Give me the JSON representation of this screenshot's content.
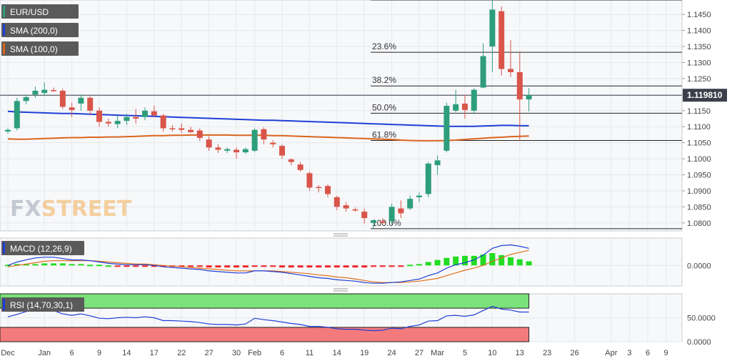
{
  "chart_data": {
    "type": "candlestick",
    "main": {
      "symbol_label": "EUR/USD",
      "sma200_label": "SMA (200,0)",
      "sma100_label": "SMA (100,0)",
      "last_price_label": "1.119810",
      "last_price": 1.11981,
      "ylim": [
        1.0775,
        1.1495
      ],
      "yticks": [
        "1.0800",
        "1.0850",
        "1.0900",
        "1.0950",
        "1.1000",
        "1.1050",
        "1.1100",
        "1.1150",
        "1.1200",
        "1.1250",
        "1.1300",
        "1.1350",
        "1.1400",
        "1.1450"
      ],
      "fib_levels": [
        {
          "label": "23.6%",
          "value": 1.1332
        },
        {
          "label": "38.2%",
          "value": 1.1227
        },
        {
          "label": "50.0%",
          "value": 1.1142
        },
        {
          "label": "61.8%",
          "value": 1.1057
        },
        {
          "label": "100.0%",
          "value": 1.0782
        }
      ],
      "fib_top": 1.1495,
      "fib_start_index": 40,
      "candles": [
        {
          "o": 1.1085,
          "h": 1.1095,
          "l": 1.1078,
          "c": 1.109
        },
        {
          "o": 1.1095,
          "h": 1.119,
          "l": 1.1088,
          "c": 1.118
        },
        {
          "o": 1.118,
          "h": 1.12,
          "l": 1.117,
          "c": 1.1192
        },
        {
          "o": 1.12,
          "h": 1.1225,
          "l": 1.119,
          "c": 1.1212
        },
        {
          "o": 1.1205,
          "h": 1.1238,
          "l": 1.1196,
          "c": 1.1215
        },
        {
          "o": 1.1214,
          "h": 1.1222,
          "l": 1.1208,
          "c": 1.1211
        },
        {
          "o": 1.1212,
          "h": 1.1218,
          "l": 1.1155,
          "c": 1.1162
        },
        {
          "o": 1.116,
          "h": 1.1175,
          "l": 1.113,
          "c": 1.1152
        },
        {
          "o": 1.1172,
          "h": 1.12,
          "l": 1.115,
          "c": 1.119
        },
        {
          "o": 1.119,
          "h": 1.1195,
          "l": 1.1135,
          "c": 1.115
        },
        {
          "o": 1.115,
          "h": 1.116,
          "l": 1.11,
          "c": 1.1115
        },
        {
          "o": 1.1115,
          "h": 1.1125,
          "l": 1.11,
          "c": 1.111
        },
        {
          "o": 1.1108,
          "h": 1.1135,
          "l": 1.1095,
          "c": 1.1118
        },
        {
          "o": 1.1118,
          "h": 1.114,
          "l": 1.1105,
          "c": 1.113
        },
        {
          "o": 1.113,
          "h": 1.1155,
          "l": 1.111,
          "c": 1.1125
        },
        {
          "o": 1.113,
          "h": 1.116,
          "l": 1.112,
          "c": 1.115
        },
        {
          "o": 1.1148,
          "h": 1.1165,
          "l": 1.113,
          "c": 1.1135
        },
        {
          "o": 1.1135,
          "h": 1.114,
          "l": 1.1085,
          "c": 1.1095
        },
        {
          "o": 1.1095,
          "h": 1.1105,
          "l": 1.1085,
          "c": 1.1092
        },
        {
          "o": 1.1095,
          "h": 1.111,
          "l": 1.108,
          "c": 1.109
        },
        {
          "o": 1.109,
          "h": 1.11,
          "l": 1.108,
          "c": 1.1083
        },
        {
          "o": 1.1088,
          "h": 1.1095,
          "l": 1.1055,
          "c": 1.1065
        },
        {
          "o": 1.106,
          "h": 1.107,
          "l": 1.1025,
          "c": 1.1035
        },
        {
          "o": 1.1035,
          "h": 1.1045,
          "l": 1.1018,
          "c": 1.1028
        },
        {
          "o": 1.1025,
          "h": 1.1035,
          "l": 1.1018,
          "c": 1.103
        },
        {
          "o": 1.1028,
          "h": 1.1035,
          "l": 1.1,
          "c": 1.102
        },
        {
          "o": 1.102,
          "h": 1.1035,
          "l": 1.1015,
          "c": 1.103
        },
        {
          "o": 1.1025,
          "h": 1.1095,
          "l": 1.102,
          "c": 1.109
        },
        {
          "o": 1.1092,
          "h": 1.1098,
          "l": 1.1045,
          "c": 1.106
        },
        {
          "o": 1.105,
          "h": 1.1058,
          "l": 1.1035,
          "c": 1.1045
        },
        {
          "o": 1.104,
          "h": 1.1045,
          "l": 1.1,
          "c": 1.101
        },
        {
          "o": 1.0998,
          "h": 1.1002,
          "l": 1.098,
          "c": 1.099
        },
        {
          "o": 1.0982,
          "h": 1.099,
          "l": 1.096,
          "c": 1.0965
        },
        {
          "o": 1.0955,
          "h": 1.096,
          "l": 1.09,
          "c": 1.091
        },
        {
          "o": 1.0912,
          "h": 1.0918,
          "l": 1.0895,
          "c": 1.091
        },
        {
          "o": 1.0915,
          "h": 1.092,
          "l": 1.088,
          "c": 1.089
        },
        {
          "o": 1.088,
          "h": 1.0885,
          "l": 1.084,
          "c": 1.085
        },
        {
          "o": 1.0855,
          "h": 1.0865,
          "l": 1.0835,
          "c": 1.0845
        },
        {
          "o": 1.0842,
          "h": 1.0848,
          "l": 1.0835,
          "c": 1.084
        },
        {
          "o": 1.0835,
          "h": 1.0845,
          "l": 1.0798,
          "c": 1.0815
        },
        {
          "o": 1.08,
          "h": 1.081,
          "l": 1.0782,
          "c": 1.0808
        },
        {
          "o": 1.0805,
          "h": 1.0815,
          "l": 1.0795,
          "c": 1.08
        },
        {
          "o": 1.0805,
          "h": 1.086,
          "l": 1.0795,
          "c": 1.085
        },
        {
          "o": 1.0845,
          "h": 1.087,
          "l": 1.0815,
          "c": 1.083
        },
        {
          "o": 1.0845,
          "h": 1.0885,
          "l": 1.084,
          "c": 1.0875
        },
        {
          "o": 1.088,
          "h": 1.0895,
          "l": 1.0865,
          "c": 1.0885
        },
        {
          "o": 1.089,
          "h": 1.099,
          "l": 1.088,
          "c": 1.0985
        },
        {
          "o": 1.098,
          "h": 1.101,
          "l": 1.095,
          "c": 1.0995
        },
        {
          "o": 1.1025,
          "h": 1.1175,
          "l": 1.102,
          "c": 1.1165
        },
        {
          "o": 1.115,
          "h": 1.1215,
          "l": 1.1145,
          "c": 1.117
        },
        {
          "o": 1.1172,
          "h": 1.12,
          "l": 1.1125,
          "c": 1.1152
        },
        {
          "o": 1.115,
          "h": 1.122,
          "l": 1.114,
          "c": 1.1215
        },
        {
          "o": 1.1222,
          "h": 1.136,
          "l": 1.122,
          "c": 1.132
        },
        {
          "o": 1.135,
          "h": 1.1495,
          "l": 1.127,
          "c": 1.1465
        },
        {
          "o": 1.146,
          "h": 1.1475,
          "l": 1.126,
          "c": 1.128
        },
        {
          "o": 1.128,
          "h": 1.137,
          "l": 1.1255,
          "c": 1.127
        },
        {
          "o": 1.127,
          "h": 1.133,
          "l": 1.1055,
          "c": 1.1185
        },
        {
          "o": 1.1185,
          "h": 1.122,
          "l": 1.1148,
          "c": 1.1198
        }
      ],
      "sma200": [
        1.1148,
        1.1146,
        1.1145,
        1.1144,
        1.1143,
        1.1142,
        1.1141,
        1.1141,
        1.114,
        1.1139,
        1.1138,
        1.1137,
        1.1136,
        1.1135,
        1.1134,
        1.1133,
        1.1132,
        1.1131,
        1.113,
        1.1129,
        1.1128,
        1.1127,
        1.1126,
        1.1125,
        1.1124,
        1.1123,
        1.1122,
        1.1121,
        1.112,
        1.112,
        1.1119,
        1.1118,
        1.1117,
        1.1116,
        1.1115,
        1.1114,
        1.1113,
        1.1112,
        1.1111,
        1.111,
        1.1109,
        1.1108,
        1.1107,
        1.1106,
        1.1105,
        1.1104,
        1.1103,
        1.1102,
        1.1101,
        1.1101,
        1.1101,
        1.1101,
        1.1102,
        1.1103,
        1.1104,
        1.1104,
        1.1103,
        1.1103
      ],
      "sma100": [
        1.1062,
        1.1061,
        1.1061,
        1.1062,
        1.1063,
        1.1064,
        1.1065,
        1.1066,
        1.1066,
        1.1067,
        1.1067,
        1.1068,
        1.1068,
        1.1069,
        1.107,
        1.1071,
        1.1072,
        1.1072,
        1.1073,
        1.1073,
        1.1074,
        1.1074,
        1.1074,
        1.1074,
        1.1074,
        1.1073,
        1.1073,
        1.1073,
        1.1073,
        1.1072,
        1.1072,
        1.1071,
        1.107,
        1.1069,
        1.1068,
        1.1067,
        1.1066,
        1.1065,
        1.1064,
        1.1063,
        1.1062,
        1.1061,
        1.106,
        1.1058,
        1.1057,
        1.1056,
        1.1056,
        1.1056,
        1.1057,
        1.1058,
        1.106,
        1.1062,
        1.1064,
        1.1066,
        1.1067,
        1.1069,
        1.107,
        1.1071
      ]
    },
    "macd": {
      "label": "MACD (12,26,9)",
      "ylim": [
        -0.003,
        0.004
      ],
      "yticks": [
        {
          "v": 0.0,
          "label": "0.0000"
        }
      ],
      "hist": [
        0.0001,
        0.0002,
        0.0002,
        0.0002,
        0.0003,
        0.0003,
        0.0003,
        0.0002,
        0.0002,
        0.0001,
        0.0001,
        0.0,
        -0.0001,
        -0.0001,
        -0.0001,
        -0.0001,
        -0.0001,
        -0.0002,
        -0.0002,
        -0.0002,
        -0.0002,
        -0.0002,
        -0.0003,
        -0.0003,
        -0.0003,
        -0.0003,
        -0.0003,
        -0.0002,
        -0.0002,
        -0.0002,
        -0.0003,
        -0.0003,
        -0.0003,
        -0.0003,
        -0.0003,
        -0.0003,
        -0.0003,
        -0.0003,
        -0.0003,
        -0.0003,
        -0.0002,
        -0.0002,
        -0.0001,
        -0.0001,
        0.0001,
        0.0002,
        0.0005,
        0.0008,
        0.0011,
        0.0013,
        0.0014,
        0.0014,
        0.0016,
        0.0018,
        0.0015,
        0.0012,
        0.0009,
        0.0006
      ],
      "macd_line": [
        0.0,
        0.0005,
        0.0008,
        0.0011,
        0.0012,
        0.0012,
        0.001,
        0.0008,
        0.0008,
        0.0007,
        0.0005,
        0.0003,
        0.0002,
        0.0001,
        0.0001,
        0.0001,
        0.0,
        -0.0002,
        -0.0003,
        -0.0004,
        -0.0005,
        -0.0006,
        -0.0008,
        -0.0009,
        -0.001,
        -0.0011,
        -0.0011,
        -0.0008,
        -0.0008,
        -0.0009,
        -0.001,
        -0.0012,
        -0.0014,
        -0.0016,
        -0.0018,
        -0.0019,
        -0.0021,
        -0.0022,
        -0.0023,
        -0.0025,
        -0.0026,
        -0.0026,
        -0.0025,
        -0.0024,
        -0.0022,
        -0.002,
        -0.0015,
        -0.0011,
        -0.0004,
        0.0001,
        0.0004,
        0.0008,
        0.0015,
        0.0025,
        0.0029,
        0.003,
        0.0028,
        0.0025
      ],
      "signal_line": [
        -0.0002,
        0.0,
        0.0002,
        0.0004,
        0.0006,
        0.0007,
        0.0007,
        0.0007,
        0.0007,
        0.0007,
        0.0006,
        0.0005,
        0.0004,
        0.0003,
        0.0002,
        0.0002,
        0.0001,
        0.0,
        -0.0001,
        -0.0002,
        -0.0003,
        -0.0004,
        -0.0005,
        -0.0006,
        -0.0007,
        -0.0008,
        -0.0008,
        -0.0008,
        -0.0008,
        -0.0008,
        -0.0009,
        -0.001,
        -0.0011,
        -0.0012,
        -0.0014,
        -0.0015,
        -0.0017,
        -0.0018,
        -0.002,
        -0.0022,
        -0.0024,
        -0.0025,
        -0.0025,
        -0.0025,
        -0.0024,
        -0.0023,
        -0.0021,
        -0.0019,
        -0.0015,
        -0.0011,
        -0.0007,
        -0.0004,
        0.0,
        0.0006,
        0.0011,
        0.0016,
        0.0019,
        0.0022
      ]
    },
    "rsi": {
      "label": "RSI (14,70,30,1)",
      "ylim": [
        0,
        100
      ],
      "overbought": 70,
      "oversold": 30,
      "yticks": [
        {
          "v": 50,
          "label": "50.0000"
        },
        {
          "v": 0,
          "label": "0.0000"
        }
      ],
      "values": [
        52,
        57,
        63,
        66,
        66,
        65,
        58,
        55,
        58,
        54,
        49,
        48,
        50,
        51,
        50,
        52,
        50,
        44,
        44,
        43,
        42,
        40,
        37,
        36,
        36,
        35,
        37,
        49,
        46,
        44,
        41,
        38,
        36,
        32,
        32,
        30,
        27,
        26,
        26,
        24,
        23,
        24,
        28,
        27,
        32,
        35,
        43,
        44,
        54,
        55,
        53,
        56,
        65,
        74,
        68,
        66,
        62,
        62
      ]
    },
    "x_axis": {
      "ticks": [
        {
          "i": 0,
          "label": "Dec"
        },
        {
          "i": 4,
          "label": "Jan"
        },
        {
          "i": 7,
          "label": "6"
        },
        {
          "i": 10,
          "label": "9"
        },
        {
          "i": 13,
          "label": "14"
        },
        {
          "i": 16,
          "label": "17"
        },
        {
          "i": 19,
          "label": "22"
        },
        {
          "i": 22,
          "label": "27"
        },
        {
          "i": 25,
          "label": "30"
        },
        {
          "i": 27,
          "label": "Feb"
        },
        {
          "i": 30,
          "label": "6"
        },
        {
          "i": 33,
          "label": "11"
        },
        {
          "i": 36,
          "label": "14"
        },
        {
          "i": 39,
          "label": "19"
        },
        {
          "i": 42,
          "label": "24"
        },
        {
          "i": 45,
          "label": "27"
        },
        {
          "i": 47,
          "label": "Mar"
        },
        {
          "i": 50,
          "label": "5"
        },
        {
          "i": 53,
          "label": "10"
        },
        {
          "i": 56,
          "label": "13"
        },
        {
          "i": 59,
          "label": "23"
        },
        {
          "i": 62,
          "label": "26"
        },
        {
          "i": 66,
          "label": "Apr"
        },
        {
          "i": 68,
          "label": "3"
        },
        {
          "i": 70,
          "label": "6"
        },
        {
          "i": 72,
          "label": "9"
        }
      ]
    },
    "watermark": "FXSTREET",
    "colors": {
      "up": "#2e9e7a",
      "down": "#d9554a",
      "sma200": "#1f3fd6",
      "sma100": "#d9651e",
      "macd_hist_up": "#22dd22",
      "macd_hist_down": "#ee2222",
      "macd_line": "#1f3fd6",
      "signal_line": "#e0701e",
      "rsi_line": "#1f3fd6",
      "rsi_overbought": "#7be27b",
      "rsi_oversold": "#f37b7b",
      "price_tag": "#3a3f4a"
    }
  }
}
